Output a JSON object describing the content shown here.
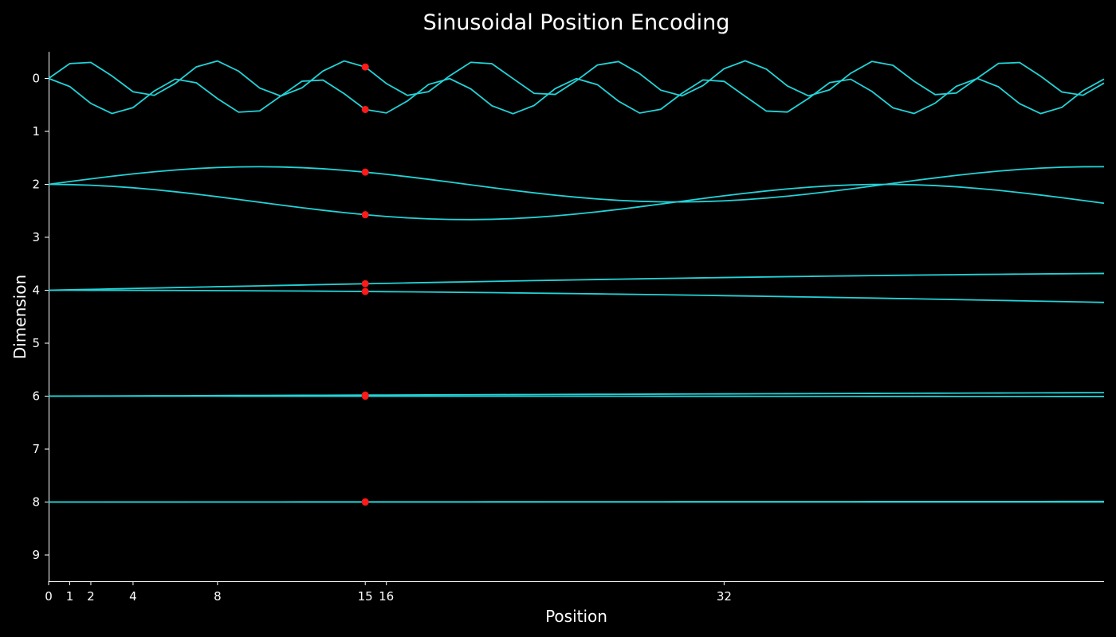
{
  "chart_data": {
    "type": "line",
    "title": "Sinusoidal Position Encoding",
    "xlabel": "Position",
    "ylabel": "Dimension",
    "x_ticks": [
      0,
      1,
      2,
      4,
      8,
      15,
      16,
      32
    ],
    "y_ticks": [
      0,
      1,
      2,
      3,
      4,
      5,
      6,
      7,
      8,
      9
    ],
    "xlim": [
      0,
      50
    ],
    "ylim_inverted": [
      9.5,
      -0.5
    ],
    "d_model": 10,
    "offset_scale": 0.333,
    "highlight_position": 15,
    "positions": "integer positions 0 through 50",
    "series_formula": "dimension row 2i+k plotted at baseline 2i + k*(1/3) with value -0.333*PE; PE = sin(pos/10000^(2i/10)) for k=0, cos(pos/10000^(2i/10)) for k=1",
    "grid": false,
    "legend": "none",
    "colors": {
      "background": "#000000",
      "line": "#22d3d8",
      "marker": "#ff1a1a",
      "axis": "#ffffff"
    }
  }
}
